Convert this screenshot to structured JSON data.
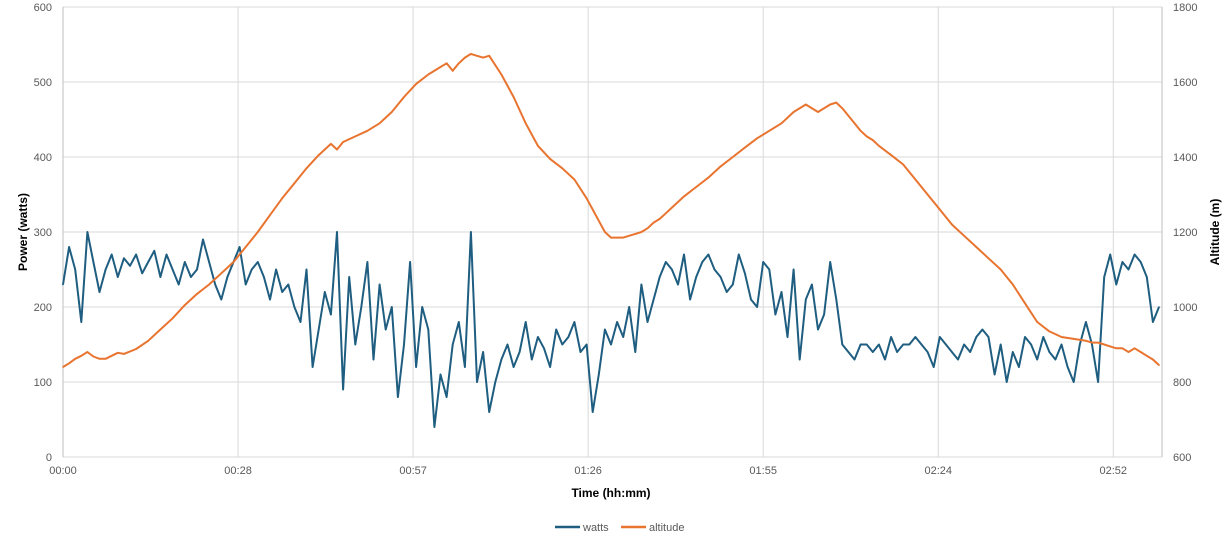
{
  "chart_data": {
    "type": "line",
    "title": "",
    "xlabel": "Time (hh:mm)",
    "ylabel": "Power (watts)",
    "y2label": "Altitude (m)",
    "x_ticks": [
      "00:00",
      "00:28",
      "00:57",
      "01:26",
      "01:55",
      "02:24",
      "02:52"
    ],
    "x_tick_minutes": [
      0,
      28.75,
      57.5,
      86.25,
      115,
      143.75,
      172.5
    ],
    "xlim_minutes": [
      0,
      180.5
    ],
    "ylim": [
      0,
      600
    ],
    "y_ticks": [
      "0",
      "100",
      "200",
      "300",
      "400",
      "500",
      "600"
    ],
    "y2lim": [
      600,
      1800
    ],
    "y2_ticks": [
      "600",
      "800",
      "1000",
      "1200",
      "1400",
      "1600",
      "1800"
    ],
    "grid": true,
    "legend": "bottom",
    "colors": {
      "watts": "#1f5e80",
      "altitude": "#e8742f",
      "grid": "#d9d9d9"
    },
    "series": [
      {
        "name": "watts",
        "axis": "left",
        "x_minutes": [
          0,
          1,
          2,
          3,
          4,
          5,
          6,
          7,
          8,
          9,
          10,
          11,
          12,
          13,
          14,
          15,
          16,
          17,
          18,
          19,
          20,
          21,
          22,
          23,
          24,
          25,
          26,
          27,
          28,
          29,
          30,
          31,
          32,
          33,
          34,
          35,
          36,
          37,
          38,
          39,
          40,
          41,
          42,
          43,
          44,
          45,
          46,
          47,
          48,
          49,
          50,
          51,
          52,
          53,
          54,
          55,
          56,
          57,
          58,
          59,
          60,
          61,
          62,
          63,
          64,
          65,
          66,
          67,
          68,
          69,
          70,
          71,
          72,
          73,
          74,
          75,
          76,
          77,
          78,
          79,
          80,
          81,
          82,
          83,
          84,
          85,
          86,
          87,
          88,
          89,
          90,
          91,
          92,
          93,
          94,
          95,
          96,
          97,
          98,
          99,
          100,
          101,
          102,
          103,
          104,
          105,
          106,
          107,
          108,
          109,
          110,
          111,
          112,
          113,
          114,
          115,
          116,
          117,
          118,
          119,
          120,
          121,
          122,
          123,
          124,
          125,
          126,
          127,
          128,
          129,
          130,
          131,
          132,
          133,
          134,
          135,
          136,
          137,
          138,
          139,
          140,
          141,
          142,
          143,
          144,
          145,
          146,
          147,
          148,
          149,
          150,
          151,
          152,
          153,
          154,
          155,
          156,
          157,
          158,
          159,
          160,
          161,
          162,
          163,
          164,
          165,
          166,
          167,
          168,
          169,
          170,
          171,
          172,
          173,
          174,
          175,
          176,
          177,
          178,
          179,
          180
        ],
        "values": [
          230,
          280,
          250,
          180,
          300,
          260,
          220,
          250,
          270,
          240,
          265,
          255,
          270,
          245,
          260,
          275,
          240,
          270,
          250,
          230,
          260,
          240,
          250,
          290,
          260,
          230,
          210,
          240,
          260,
          280,
          230,
          250,
          260,
          240,
          210,
          250,
          220,
          230,
          200,
          180,
          250,
          120,
          170,
          220,
          190,
          300,
          90,
          240,
          150,
          200,
          260,
          130,
          230,
          170,
          200,
          80,
          150,
          260,
          120,
          200,
          170,
          40,
          110,
          80,
          150,
          180,
          120,
          300,
          100,
          140,
          60,
          100,
          130,
          150,
          120,
          140,
          180,
          130,
          160,
          145,
          120,
          170,
          150,
          160,
          180,
          140,
          150,
          60,
          110,
          170,
          150,
          180,
          160,
          200,
          140,
          230,
          180,
          210,
          240,
          260,
          250,
          230,
          270,
          210,
          240,
          260,
          270,
          250,
          240,
          220,
          230,
          270,
          245,
          210,
          200,
          260,
          250,
          190,
          220,
          160,
          250,
          130,
          210,
          230,
          170,
          190,
          260,
          210,
          150,
          140,
          130,
          150,
          150,
          140,
          150,
          130,
          160,
          140,
          150,
          150,
          160,
          150,
          140,
          120,
          160,
          150,
          140,
          130,
          150,
          140,
          160,
          170,
          160,
          110,
          150,
          100,
          140,
          120,
          160,
          150,
          130,
          160,
          140,
          130,
          150,
          120,
          100,
          150,
          180,
          150,
          100,
          240,
          270,
          230,
          260,
          250,
          270,
          260,
          240,
          180,
          200
        ]
      },
      {
        "name": "altitude",
        "axis": "right",
        "x_minutes": [
          0,
          1,
          2,
          3,
          4,
          5,
          6,
          7,
          8,
          9,
          10,
          12,
          14,
          16,
          18,
          20,
          22,
          24,
          26,
          28,
          30,
          32,
          34,
          36,
          38,
          40,
          42,
          44,
          45,
          46,
          48,
          50,
          52,
          54,
          56,
          58,
          60,
          62,
          63,
          64,
          65,
          66,
          67,
          68,
          69,
          70,
          72,
          74,
          76,
          78,
          80,
          82,
          84,
          86,
          87,
          88,
          89,
          90,
          92,
          94,
          95,
          96,
          97,
          98,
          99,
          100,
          102,
          104,
          106,
          108,
          110,
          112,
          114,
          116,
          118,
          120,
          122,
          124,
          126,
          127,
          128,
          129,
          130,
          131,
          132,
          133,
          134,
          136,
          138,
          140,
          142,
          144,
          146,
          148,
          150,
          152,
          154,
          156,
          158,
          160,
          162,
          164,
          166,
          168,
          169,
          170,
          171,
          172,
          173,
          174,
          175,
          176,
          177,
          178,
          179,
          180
        ],
        "values": [
          840,
          850,
          862,
          870,
          880,
          868,
          862,
          862,
          870,
          878,
          875,
          888,
          910,
          940,
          970,
          1005,
          1035,
          1060,
          1090,
          1120,
          1160,
          1200,
          1245,
          1290,
          1330,
          1370,
          1405,
          1435,
          1420,
          1440,
          1455,
          1470,
          1490,
          1520,
          1560,
          1595,
          1620,
          1640,
          1650,
          1630,
          1650,
          1665,
          1675,
          1670,
          1665,
          1670,
          1620,
          1560,
          1490,
          1430,
          1395,
          1370,
          1340,
          1290,
          1260,
          1230,
          1200,
          1185,
          1185,
          1195,
          1200,
          1210,
          1225,
          1235,
          1250,
          1265,
          1295,
          1320,
          1345,
          1375,
          1400,
          1425,
          1450,
          1470,
          1490,
          1520,
          1540,
          1520,
          1540,
          1545,
          1530,
          1510,
          1490,
          1470,
          1455,
          1445,
          1430,
          1405,
          1380,
          1340,
          1300,
          1260,
          1220,
          1190,
          1160,
          1130,
          1100,
          1060,
          1010,
          960,
          935,
          920,
          915,
          910,
          905,
          905,
          900,
          895,
          890,
          890,
          880,
          890,
          880,
          870,
          860,
          845
        ]
      }
    ]
  }
}
